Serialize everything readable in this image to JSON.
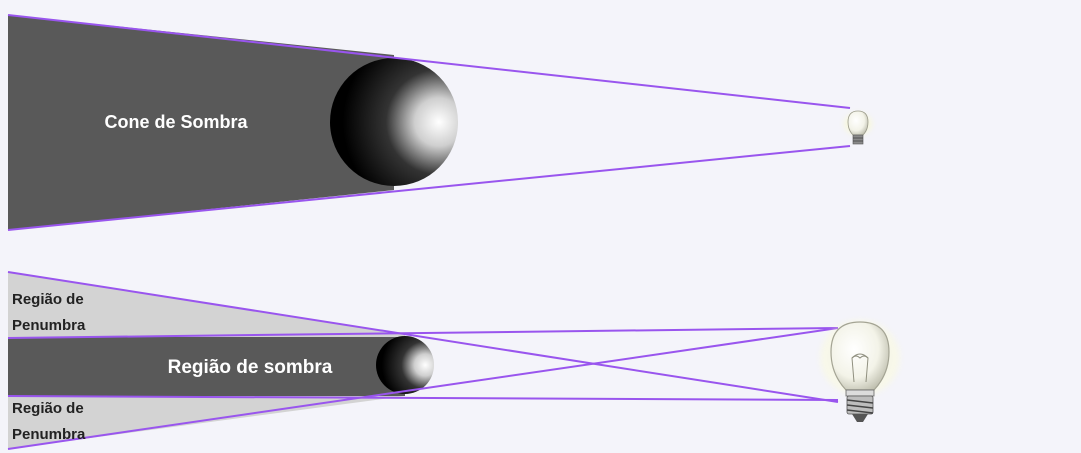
{
  "diagram": {
    "umbra_cone_label": "Cone de Sombra",
    "shadow_region_label": "Região de sombra",
    "penumbra_top_label": [
      "Região de",
      "Penumbra"
    ],
    "penumbra_bottom_label": [
      "Região de",
      "Penumbra"
    ]
  },
  "colors": {
    "background": "#f4f4fa",
    "shadow": "#595959",
    "penumbra": "#d3d3d3",
    "rays": "#9955ee",
    "label_on_dark": "#ffffff",
    "label_on_light": "#222222"
  },
  "icons": [
    "bulb-icon-small",
    "bulb-icon-large",
    "sphere-small",
    "sphere-large"
  ]
}
